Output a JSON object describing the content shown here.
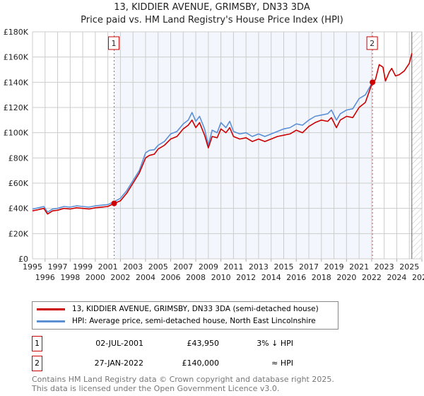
{
  "chart_data": {
    "type": "line",
    "title": "13, KIDDIER AVENUE, GRIMSBY, DN33 3DA",
    "subtitle": "Price paid vs. HM Land Registry's House Price Index (HPI)",
    "xlim": [
      1995,
      2026
    ],
    "ylim": [
      0,
      180000
    ],
    "x_ticks": [
      "1995",
      "1996",
      "1997",
      "1998",
      "1999",
      "2000",
      "2001",
      "2002",
      "2003",
      "2004",
      "2005",
      "2006",
      "2007",
      "2008",
      "2009",
      "2010",
      "2011",
      "2012",
      "2013",
      "2014",
      "2015",
      "2016",
      "2017",
      "2018",
      "2019",
      "2020",
      "2021",
      "2022",
      "2023",
      "2024",
      "2025",
      "2026"
    ],
    "y_ticks": [
      {
        "v": 0,
        "label": "£0"
      },
      {
        "v": 20000,
        "label": "£20K"
      },
      {
        "v": 40000,
        "label": "£40K"
      },
      {
        "v": 60000,
        "label": "£60K"
      },
      {
        "v": 80000,
        "label": "£80K"
      },
      {
        "v": 100000,
        "label": "£100K"
      },
      {
        "v": 120000,
        "label": "£120K"
      },
      {
        "v": 140000,
        "label": "£140K"
      },
      {
        "v": 160000,
        "label": "£160K"
      },
      {
        "v": 180000,
        "label": "£180K"
      }
    ],
    "grid": true,
    "shaded_range": [
      2001.5,
      2022.07
    ],
    "future_hatch_from": 2025.2,
    "series": [
      {
        "name": "13, KIDDIER AVENUE, GRIMSBY, DN33 3DA (semi-detached house)",
        "color": "#cc0000",
        "x": [
          1995,
          1995.5,
          1995.9,
          1996.2,
          1996.6,
          1997,
          1997.5,
          1998,
          1998.5,
          1999,
          1999.5,
          2000,
          2000.5,
          2001,
          2001.5,
          2002,
          2002.5,
          2003,
          2003.5,
          2004,
          2004.3,
          2004.7,
          2005,
          2005.5,
          2006,
          2006.5,
          2007,
          2007.4,
          2007.7,
          2008,
          2008.3,
          2008.7,
          2009,
          2009.3,
          2009.7,
          2010,
          2010.4,
          2010.7,
          2011,
          2011.5,
          2012,
          2012.5,
          2013,
          2013.5,
          2014,
          2014.5,
          2015,
          2015.5,
          2016,
          2016.5,
          2017,
          2017.5,
          2018,
          2018.5,
          2018.8,
          2019.2,
          2019.5,
          2020,
          2020.5,
          2021,
          2021.5,
          2022.07,
          2022.3,
          2022.6,
          2022.9,
          2023.1,
          2023.4,
          2023.6,
          2023.9,
          2024.2,
          2024.6,
          2025,
          2025.2
        ],
        "y": [
          38000,
          39000,
          40000,
          35500,
          38000,
          38500,
          40000,
          39500,
          40500,
          40000,
          39500,
          40500,
          41000,
          41500,
          43950,
          46000,
          52000,
          60000,
          68000,
          80000,
          82000,
          83000,
          87000,
          90000,
          95000,
          97000,
          103000,
          106000,
          110000,
          104000,
          108000,
          98000,
          88000,
          97000,
          96000,
          103000,
          100000,
          104000,
          97000,
          95000,
          96000,
          93000,
          95000,
          93000,
          95000,
          97000,
          98000,
          99000,
          102000,
          100000,
          105000,
          108000,
          110000,
          109000,
          112000,
          104000,
          110000,
          113000,
          112000,
          120000,
          124000,
          140000,
          142000,
          154000,
          152000,
          141000,
          148000,
          151000,
          145000,
          146000,
          149000,
          155000,
          163000
        ]
      },
      {
        "name": "HPI: Average price, semi-detached house, North East Lincolnshire",
        "color": "#5b8fd6",
        "x": [
          1995,
          1995.5,
          1995.9,
          1996.2,
          1996.6,
          1997,
          1997.5,
          1998,
          1998.5,
          1999,
          1999.5,
          2000,
          2000.5,
          2001,
          2001.5,
          2002,
          2002.5,
          2003,
          2003.5,
          2004,
          2004.3,
          2004.7,
          2005,
          2005.5,
          2006,
          2006.5,
          2007,
          2007.4,
          2007.7,
          2008,
          2008.3,
          2008.7,
          2009,
          2009.3,
          2009.7,
          2010,
          2010.4,
          2010.7,
          2011,
          2011.5,
          2012,
          2012.5,
          2013,
          2013.5,
          2014,
          2014.5,
          2015,
          2015.5,
          2016,
          2016.5,
          2017,
          2017.5,
          2018,
          2018.5,
          2018.8,
          2019.2,
          2019.5,
          2020,
          2020.5,
          2021,
          2021.5,
          2022.07
        ],
        "y": [
          39500,
          40500,
          41500,
          37000,
          39500,
          40000,
          41500,
          41000,
          42000,
          41500,
          41000,
          42000,
          42500,
          43000,
          45300,
          48000,
          54000,
          62000,
          70000,
          84000,
          86000,
          86500,
          90000,
          93000,
          99000,
          101000,
          107000,
          110000,
          116000,
          109000,
          113000,
          103000,
          90000,
          102000,
          100000,
          108000,
          104000,
          109000,
          101000,
          99000,
          100000,
          97000,
          99000,
          97000,
          99000,
          101000,
          103000,
          104000,
          107000,
          106000,
          110000,
          113000,
          114000,
          115000,
          118000,
          110000,
          115000,
          118000,
          119000,
          127000,
          130000,
          140000
        ]
      }
    ],
    "markers": [
      {
        "label": "1",
        "x": 2001.5,
        "y": 43950
      },
      {
        "label": "2",
        "x": 2022.07,
        "y": 140000
      }
    ]
  },
  "legend": {
    "items": [
      "13, KIDDIER AVENUE, GRIMSBY, DN33 3DA (semi-detached house)",
      "HPI: Average price, semi-detached house, North East Lincolnshire"
    ]
  },
  "transactions": [
    {
      "num": "1",
      "date": "02-JUL-2001",
      "price": "£43,950",
      "hpi": "3% ↓ HPI"
    },
    {
      "num": "2",
      "date": "27-JAN-2022",
      "price": "£140,000",
      "hpi": "≈ HPI"
    }
  ],
  "footer": [
    "Contains HM Land Registry data © Crown copyright and database right 2025.",
    "This data is licensed under the Open Government Licence v3.0."
  ]
}
